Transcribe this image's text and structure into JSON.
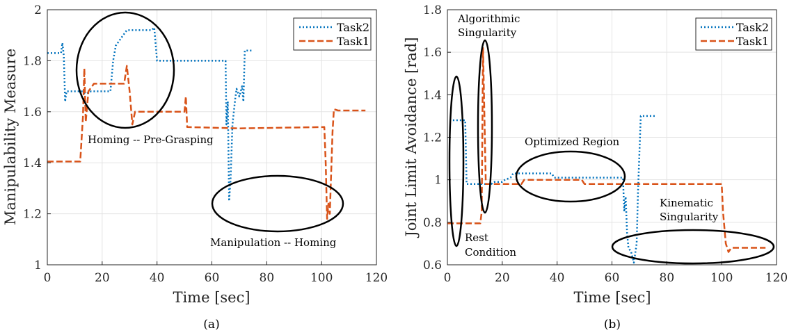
{
  "chart_data": [
    {
      "type": "line",
      "panel_label": "(a)",
      "xlabel": "Time [sec]",
      "ylabel": "Manipulability Measure",
      "xlim": [
        0,
        120
      ],
      "ylim": [
        1,
        2
      ],
      "xticks": [
        0,
        20,
        40,
        60,
        80,
        100,
        120
      ],
      "yticks": [
        1,
        1.2,
        1.4,
        1.6,
        1.8,
        2
      ],
      "ytick_labels": [
        "1",
        "1.2",
        "1.4",
        "1.6",
        "1.8",
        "2"
      ],
      "grid": true,
      "legend_location": "top-right",
      "series": [
        {
          "name": "Task2",
          "color": "#0072BD",
          "style": "dotted",
          "points": [
            [
              0,
              1.83
            ],
            [
              5,
              1.83
            ],
            [
              5.5,
              1.87
            ],
            [
              6,
              1.82
            ],
            [
              6.5,
              1.64
            ],
            [
              7,
              1.68
            ],
            [
              13,
              1.68
            ],
            [
              14,
              1.67
            ],
            [
              16,
              1.68
            ],
            [
              23,
              1.68
            ],
            [
              24,
              1.8
            ],
            [
              25,
              1.86
            ],
            [
              27,
              1.89
            ],
            [
              29,
              1.92
            ],
            [
              38,
              1.92
            ],
            [
              39,
              1.93
            ],
            [
              40,
              1.8
            ],
            [
              64,
              1.8
            ],
            [
              65,
              1.8
            ],
            [
              65.3,
              1.55
            ],
            [
              65.8,
              1.64
            ],
            [
              66.3,
              1.25
            ],
            [
              66.8,
              1.33
            ],
            [
              67.5,
              1.55
            ],
            [
              68.5,
              1.65
            ],
            [
              69,
              1.69
            ],
            [
              70,
              1.66
            ],
            [
              71,
              1.7
            ],
            [
              71.5,
              1.64
            ],
            [
              72,
              1.84
            ],
            [
              75,
              1.84
            ]
          ]
        },
        {
          "name": "Task1",
          "color": "#D95319",
          "style": "dashed",
          "points": [
            [
              0,
              1.405
            ],
            [
              12,
              1.405
            ],
            [
              13,
              1.58
            ],
            [
              13.5,
              1.77
            ],
            [
              14,
              1.56
            ],
            [
              15,
              1.68
            ],
            [
              17,
              1.71
            ],
            [
              24,
              1.71
            ],
            [
              26,
              1.71
            ],
            [
              28,
              1.71
            ],
            [
              29,
              1.78
            ],
            [
              30,
              1.68
            ],
            [
              31,
              1.55
            ],
            [
              32,
              1.6
            ],
            [
              49,
              1.6
            ],
            [
              50,
              1.6
            ],
            [
              50.5,
              1.66
            ],
            [
              51,
              1.54
            ],
            [
              70,
              1.535
            ],
            [
              101,
              1.54
            ],
            [
              101.5,
              1.4
            ],
            [
              102,
              1.18
            ],
            [
              102.5,
              1.24
            ],
            [
              103,
              1.2
            ],
            [
              104,
              1.52
            ],
            [
              104.5,
              1.61
            ],
            [
              106,
              1.605
            ],
            [
              116,
              1.605
            ]
          ]
        }
      ],
      "annotations": [
        {
          "text": "Homing -- Pre-Grasping"
        },
        {
          "text": "Manipulation -- Homing"
        }
      ]
    },
    {
      "type": "line",
      "panel_label": "(b)",
      "xlabel": "Time [sec]",
      "ylabel": "Joint Limit Avoidance [rad]",
      "xlim": [
        0,
        120
      ],
      "ylim": [
        0.6,
        1.8
      ],
      "xticks": [
        0,
        20,
        40,
        60,
        80,
        100,
        120
      ],
      "yticks": [
        0.6,
        0.8,
        1,
        1.2,
        1.4,
        1.6,
        1.8
      ],
      "ytick_labels": [
        "0.6",
        "0.8",
        "1",
        "1.2",
        "1.4",
        "1.6",
        "1.8"
      ],
      "grid": true,
      "legend_location": "top-right",
      "series": [
        {
          "name": "Task2",
          "color": "#0072BD",
          "style": "dotted",
          "points": [
            [
              2,
              1.28
            ],
            [
              6.5,
              1.28
            ],
            [
              7,
              0.98
            ],
            [
              16,
              0.98
            ],
            [
              17,
              0.99
            ],
            [
              20,
              0.99
            ],
            [
              21,
              1.0
            ],
            [
              23,
              1.01
            ],
            [
              24,
              1.03
            ],
            [
              38,
              1.03
            ],
            [
              39,
              1.01
            ],
            [
              64,
              1.01
            ],
            [
              64.5,
              0.85
            ],
            [
              65,
              0.92
            ],
            [
              65.5,
              0.75
            ],
            [
              66,
              0.68
            ],
            [
              67,
              0.66
            ],
            [
              68,
              0.61
            ],
            [
              69,
              0.7
            ],
            [
              69.5,
              0.94
            ],
            [
              70.5,
              1.3
            ],
            [
              76,
              1.3
            ]
          ]
        },
        {
          "name": "Task1",
          "color": "#D95319",
          "style": "dashed",
          "points": [
            [
              0,
              0.795
            ],
            [
              12,
              0.795
            ],
            [
              12.5,
              0.85
            ],
            [
              13,
              1.62
            ],
            [
              13.5,
              1.3
            ],
            [
              14,
              0.98
            ],
            [
              25,
              0.98
            ],
            [
              26,
              0.98
            ],
            [
              27,
              0.98
            ],
            [
              28,
              1.0
            ],
            [
              49,
              1.0
            ],
            [
              50,
              0.98
            ],
            [
              100,
              0.98
            ],
            [
              100.5,
              0.85
            ],
            [
              101.5,
              0.7
            ],
            [
              102.5,
              0.66
            ],
            [
              103.5,
              0.68
            ],
            [
              116,
              0.68
            ]
          ]
        }
      ],
      "annotations": [
        {
          "text_lines": [
            "Algorithmic",
            "Singularity"
          ]
        },
        {
          "text_lines": [
            "Rest",
            "Condition"
          ]
        },
        {
          "text": "Optimized Region"
        },
        {
          "text_lines": [
            "Kinematic",
            "Singularity"
          ]
        }
      ]
    }
  ]
}
